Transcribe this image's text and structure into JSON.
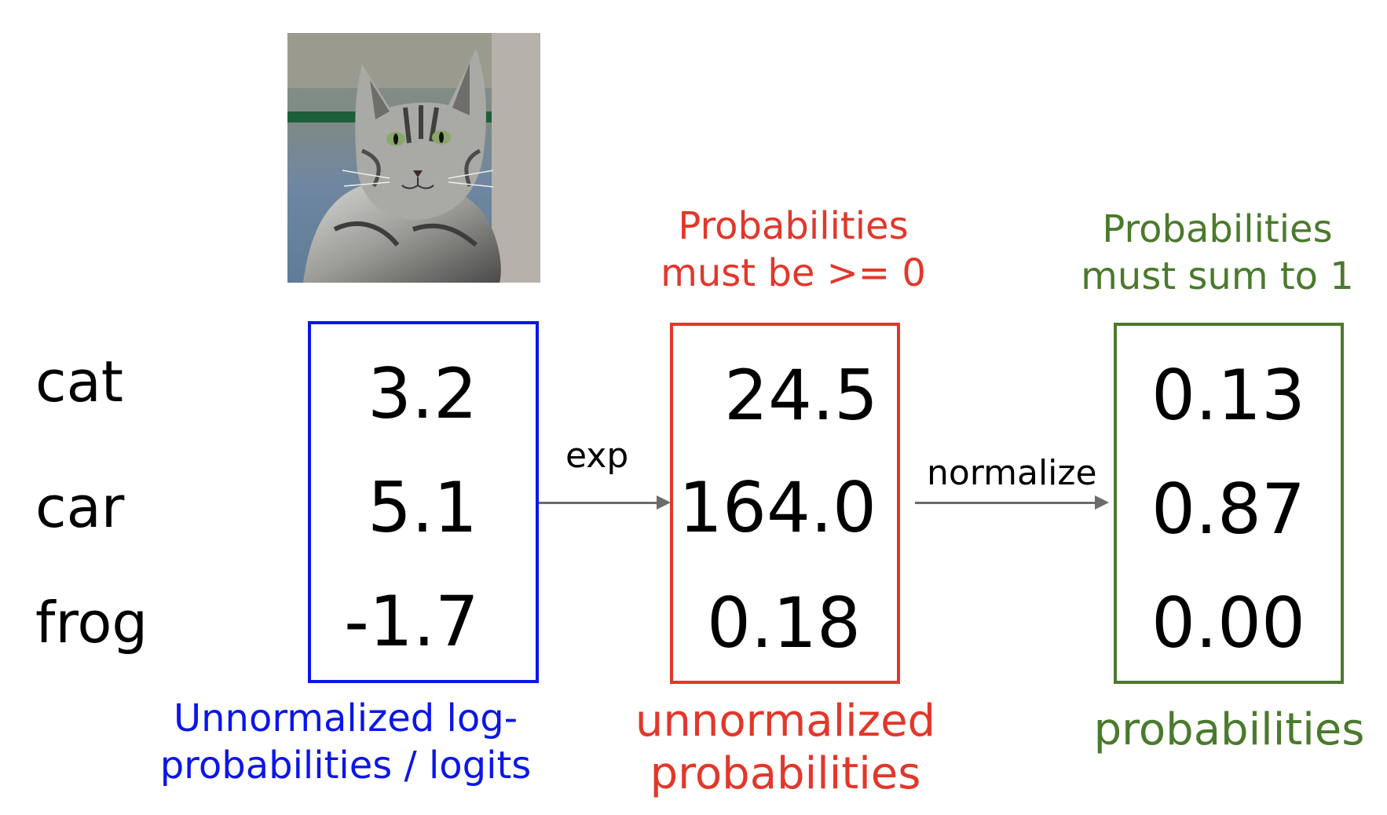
{
  "classes": [
    "cat",
    "car",
    "frog"
  ],
  "columns": {
    "logits": {
      "values": [
        "3.2",
        "5.1",
        "-1.7"
      ],
      "caption": [
        "Unnormalized log-",
        "probabilities / logits"
      ],
      "color": "#0b16e8"
    },
    "unnormalized": {
      "values": [
        "24.5",
        "164.0",
        "0.18"
      ],
      "header": [
        "Probabilities",
        "must be >= 0"
      ],
      "caption": [
        "unnormalized",
        "probabilities"
      ],
      "color": "#e2372b"
    },
    "probabilities": {
      "values": [
        "0.13",
        "0.87",
        "0.00"
      ],
      "header": [
        "Probabilities",
        "must sum to 1"
      ],
      "caption": [
        "probabilities"
      ],
      "color": "#4a7a2c"
    }
  },
  "arrows": {
    "exp": "exp",
    "normalize": "normalize"
  },
  "image": {
    "subject": "tabby cat photo"
  }
}
